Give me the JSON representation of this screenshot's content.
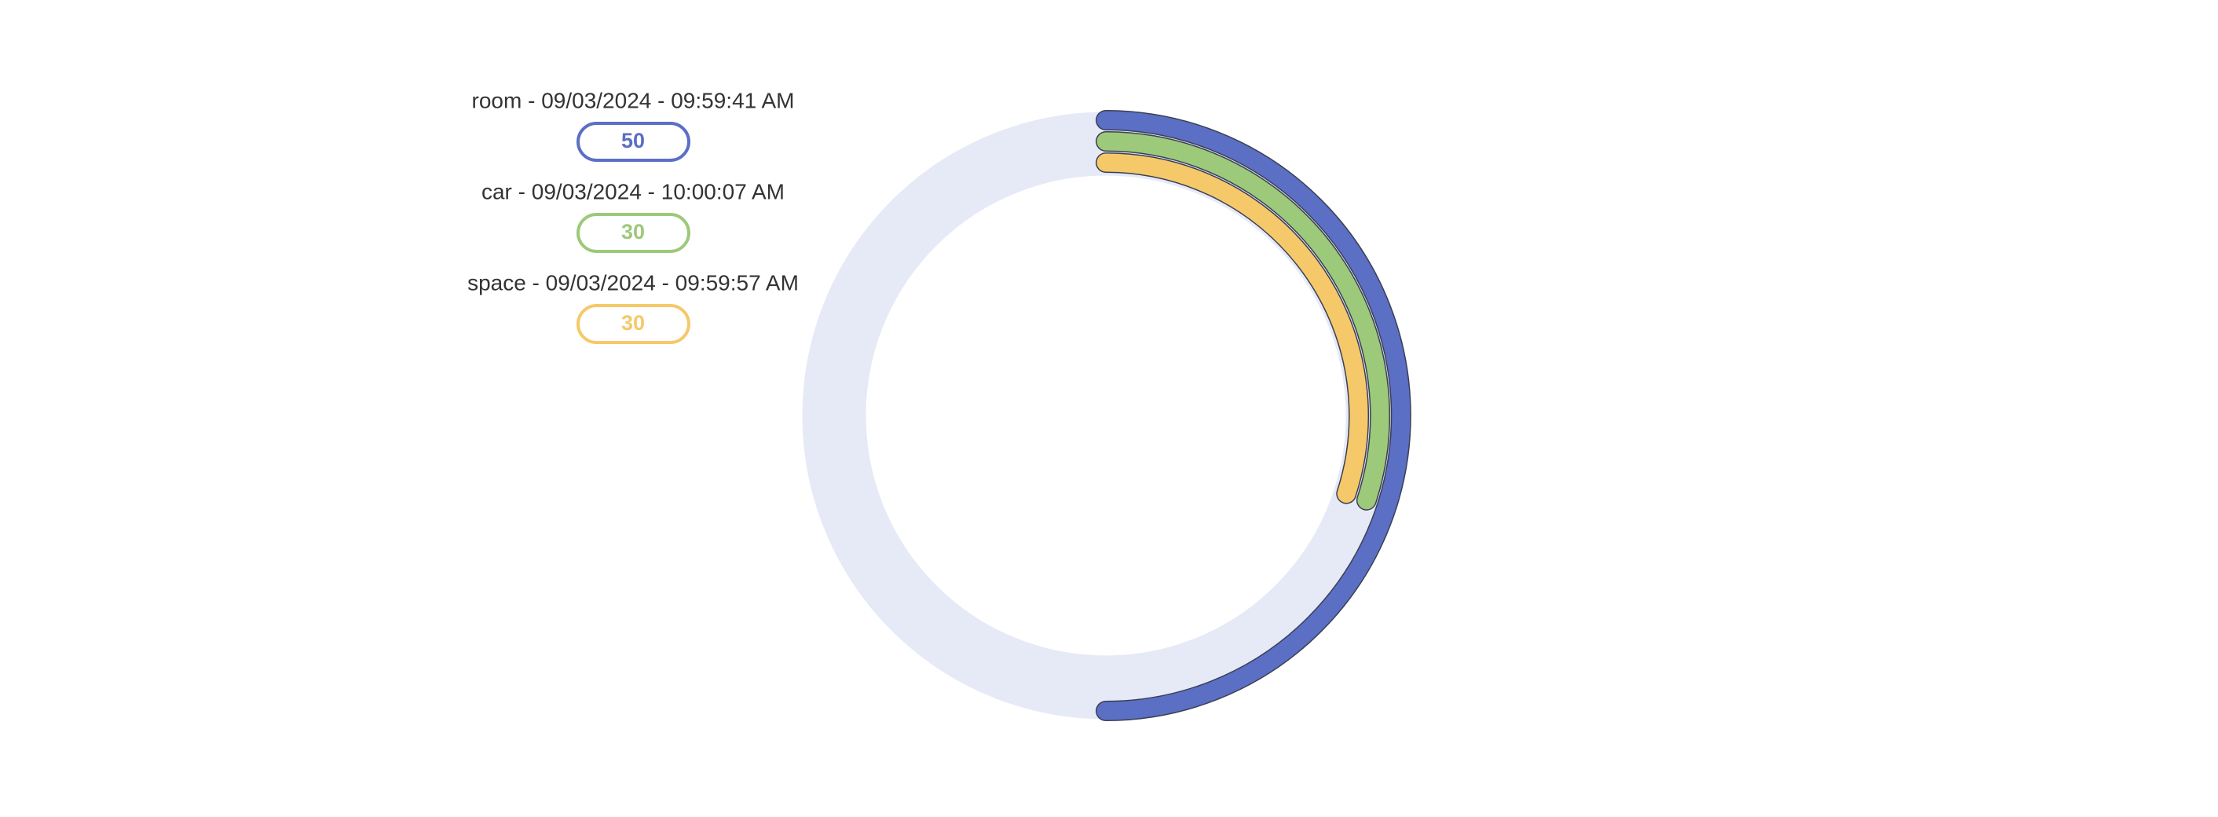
{
  "chart_data": {
    "type": "radial-bar",
    "ylim": [
      0,
      100
    ],
    "track_color": "#e6e9f6",
    "series": [
      {
        "name": "room - 09/03/2024 - 09:59:41 AM",
        "color": "#5b6fc4",
        "values": [
          50
        ]
      },
      {
        "name": "car - 09/03/2024 - 10:00:07 AM",
        "color": "#9dc97a",
        "values": [
          30
        ]
      },
      {
        "name": "space - 09/03/2024 - 09:59:57 AM",
        "color": "#f5c96a",
        "values": [
          30
        ]
      }
    ]
  }
}
